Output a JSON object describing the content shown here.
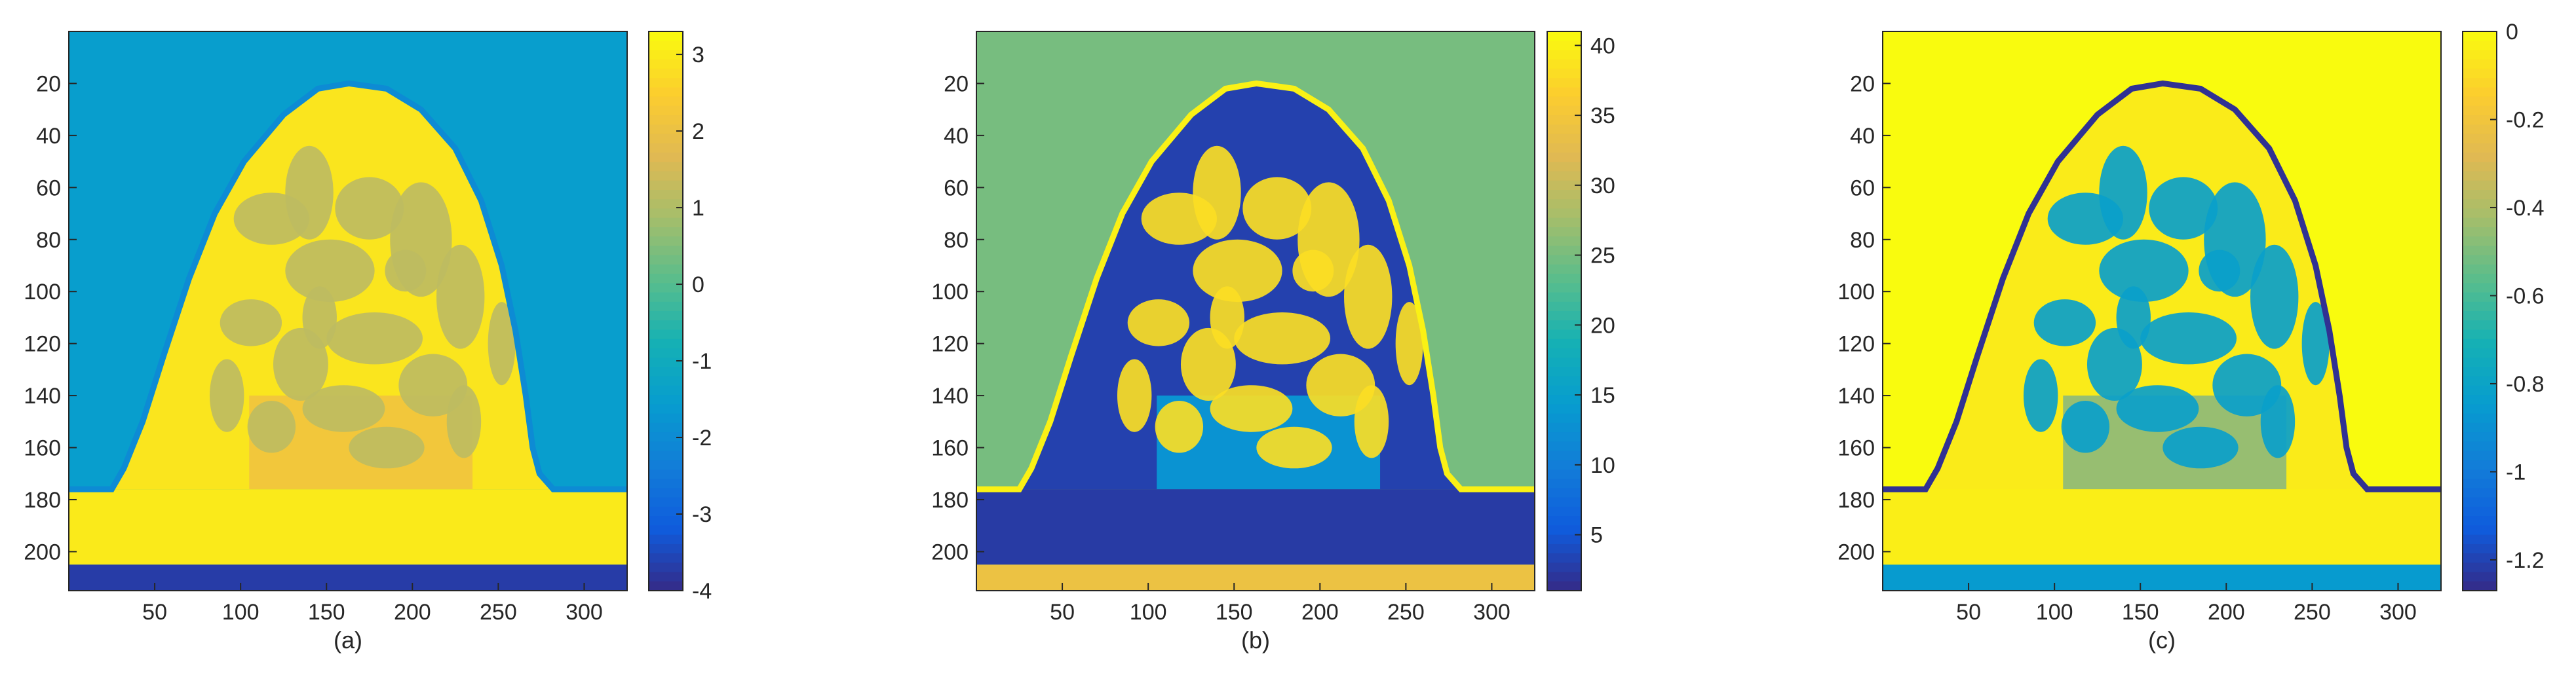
{
  "chart_data": [
    {
      "type": "heatmap",
      "caption": "(a)",
      "colormap": "parula",
      "x_ticks": [
        50,
        100,
        150,
        200,
        250,
        300
      ],
      "y_ticks": [
        20,
        40,
        60,
        80,
        100,
        120,
        140,
        160,
        180,
        200
      ],
      "xlim": [
        0,
        325
      ],
      "ylim": [
        0,
        215
      ],
      "clim": [
        -4,
        3.3
      ],
      "colorbar_ticks": [
        3,
        2,
        1,
        0,
        -1,
        -2,
        -3,
        -4
      ],
      "regions": {
        "background": -1.5,
        "tissue": 2.9,
        "tissue_pattern": 1.2,
        "lower_core": 2.2,
        "boundary": -2,
        "base_strip": 3.0,
        "bottom_strip": -3.7
      }
    },
    {
      "type": "heatmap",
      "caption": "(b)",
      "colormap": "parula",
      "x_ticks": [
        50,
        100,
        150,
        200,
        250,
        300
      ],
      "y_ticks": [
        20,
        40,
        60,
        80,
        100,
        120,
        140,
        160,
        180,
        200
      ],
      "xlim": [
        0,
        325
      ],
      "ylim": [
        0,
        215
      ],
      "clim": [
        1,
        41
      ],
      "colorbar_ticks": [
        40,
        35,
        30,
        25,
        20,
        15,
        10,
        5
      ],
      "regions": {
        "background": 25,
        "tissue": 3,
        "tissue_pattern": 38,
        "lower_core": 13,
        "boundary": 40,
        "base_strip": 2.5,
        "bottom_strip": 34
      }
    },
    {
      "type": "heatmap",
      "caption": "(c)",
      "colormap": "parula",
      "x_ticks": [
        50,
        100,
        150,
        200,
        250,
        300
      ],
      "y_ticks": [
        20,
        40,
        60,
        80,
        100,
        120,
        140,
        160,
        180,
        200
      ],
      "xlim": [
        0,
        325
      ],
      "ylim": [
        0,
        215
      ],
      "clim": [
        -1.27,
        0
      ],
      "colorbar_ticks": [
        0,
        -0.2,
        -0.4,
        -0.6,
        -0.8,
        -1,
        -1.2
      ],
      "regions": {
        "background": 0.0,
        "tissue": -0.05,
        "tissue_pattern": -0.82,
        "lower_core": -0.45,
        "boundary": -1.25,
        "base_strip": -0.04,
        "bottom_strip": -0.85
      }
    }
  ]
}
